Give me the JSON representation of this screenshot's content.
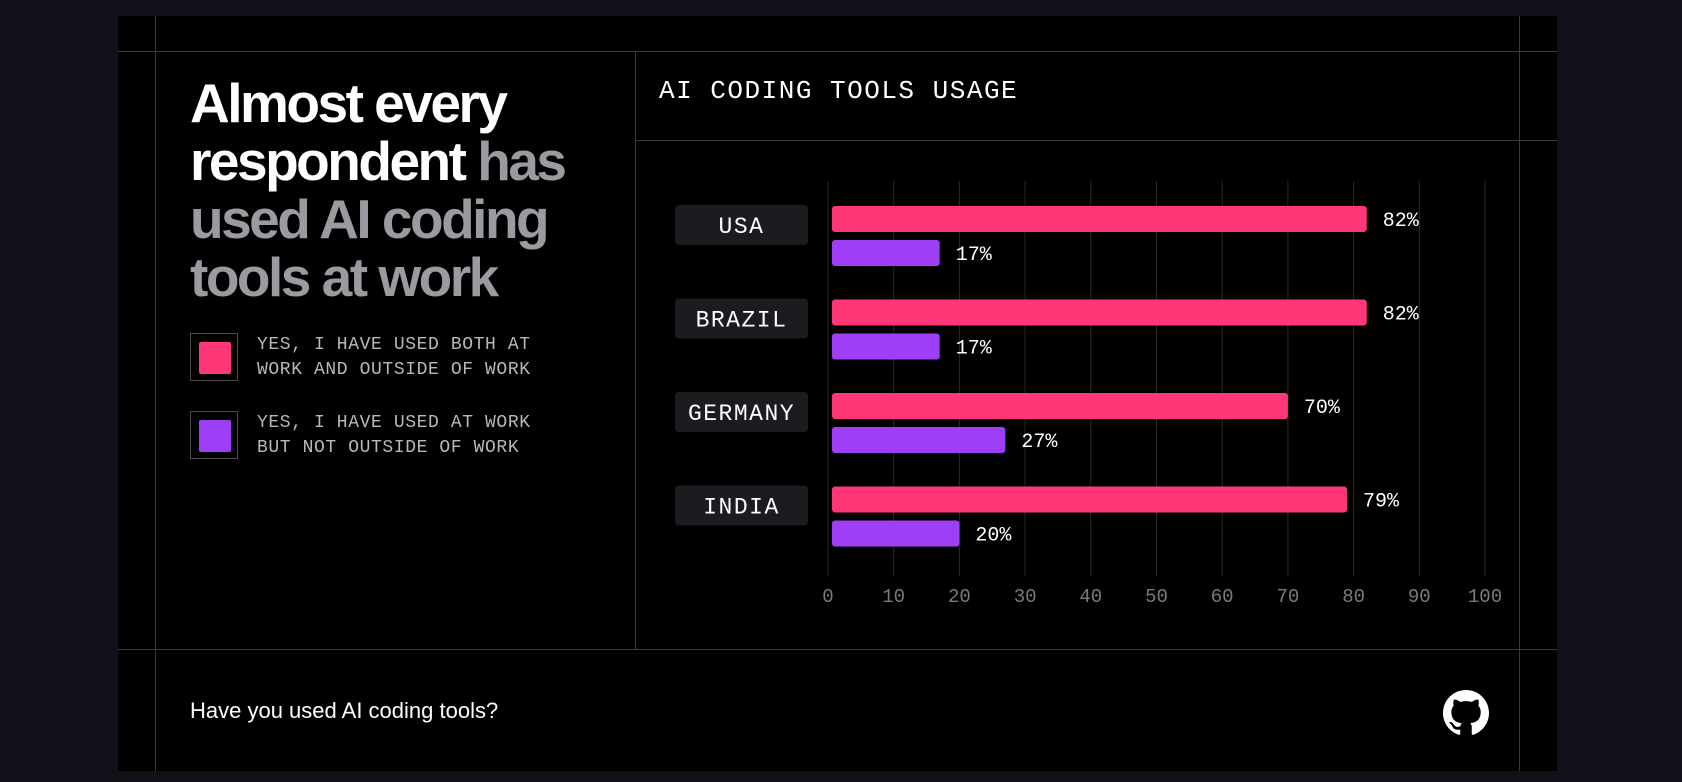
{
  "headline": {
    "white": "Almost every respondent",
    "grey": "has used AI coding tools at work"
  },
  "legend": [
    {
      "label_line1": "YES, I HAVE USED BOTH AT",
      "label_line2": "WORK AND OUTSIDE OF WORK",
      "color": "#ff3777"
    },
    {
      "label_line1": "YES, I HAVE USED AT WORK",
      "label_line2": "BUT NOT OUTSIDE OF WORK",
      "color": "#9e3ff6"
    }
  ],
  "footer": {
    "question": "Have you used AI coding tools?",
    "logo_icon": "github-icon"
  },
  "chart_data": {
    "type": "bar",
    "orientation": "horizontal",
    "title": "AI CODING TOOLS USAGE",
    "categories": [
      "USA",
      "BRAZIL",
      "GERMANY",
      "INDIA"
    ],
    "series": [
      {
        "name": "YES, I HAVE USED BOTH AT WORK AND OUTSIDE OF WORK",
        "color": "#ff3777",
        "values": [
          82,
          82,
          70,
          79
        ],
        "labels": [
          "82%",
          "82%",
          "70%",
          "79%"
        ]
      },
      {
        "name": "YES, I HAVE USED AT WORK BUT NOT OUTSIDE OF WORK",
        "color": "#9e3ff6",
        "values": [
          17,
          17,
          27,
          20
        ],
        "labels": [
          "17%",
          "17%",
          "27%",
          "20%"
        ]
      }
    ],
    "xlim": [
      0,
      100
    ],
    "xticks": [
      0,
      10,
      20,
      30,
      40,
      50,
      60,
      70,
      80,
      90,
      100
    ],
    "xtick_labels": [
      "0",
      "10",
      "20",
      "30",
      "40",
      "50",
      "60",
      "70",
      "80",
      "90",
      "100"
    ],
    "grid": true,
    "legend_position": "left"
  }
}
